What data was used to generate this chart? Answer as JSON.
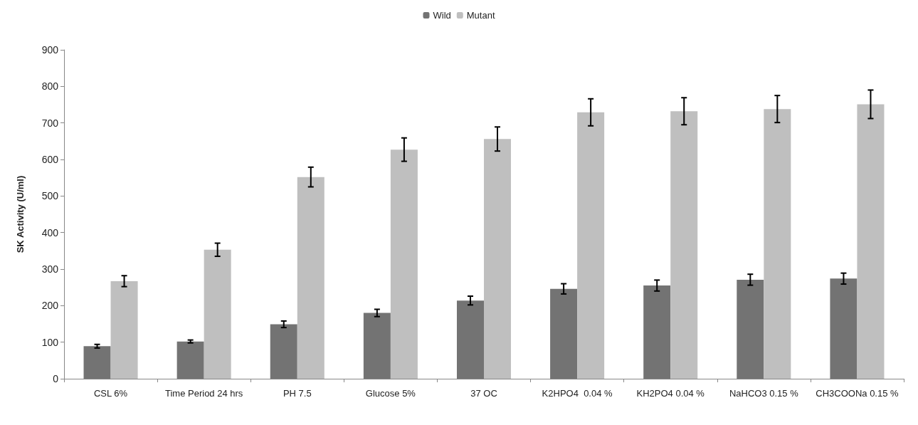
{
  "chart_data": {
    "type": "bar",
    "ylabel": "SK Activity (U/ml)",
    "categories": [
      "CSL 6%",
      "Time Period 24 hrs",
      "PH 7.5",
      "Glucose 5%",
      "37 OC",
      "K2HPO4  0.04 %",
      "KH2PO4 0.04 %",
      "NaHCO3 0.15 %",
      "CH3COONa 0.15 %"
    ],
    "series": [
      {
        "name": "Wild",
        "color": "#737373",
        "values": [
          89,
          102,
          149,
          180,
          214,
          246,
          255,
          271,
          274
        ],
        "errors": [
          5,
          4,
          9,
          10,
          12,
          14,
          15,
          15,
          15
        ]
      },
      {
        "name": "Mutant",
        "color": "#bfbfbf",
        "values": [
          267,
          353,
          552,
          627,
          656,
          729,
          732,
          738,
          751
        ],
        "errors": [
          15,
          18,
          27,
          32,
          33,
          37,
          37,
          37,
          39
        ]
      }
    ],
    "ylim": [
      0,
      900
    ],
    "yticks": [
      0,
      100,
      200,
      300,
      400,
      500,
      600,
      700,
      800,
      900
    ],
    "grid": false,
    "legend": "top"
  }
}
